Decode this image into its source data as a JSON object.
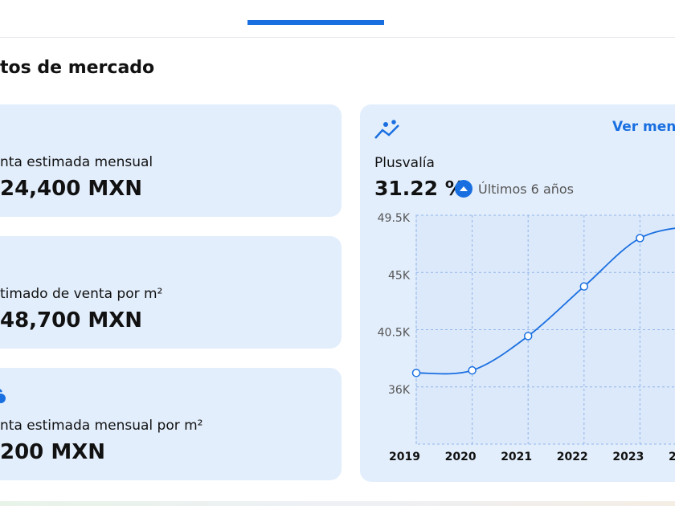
{
  "header": {
    "title": "tos de mercado"
  },
  "cards": [
    {
      "label": "nta estimada mensual",
      "value": "24,400 MXN"
    },
    {
      "label": "timado de venta por m²",
      "value": "48,700 MXN"
    },
    {
      "label": "nta estimada mensual por m²",
      "value": "200 MXN"
    }
  ],
  "chart_card": {
    "link": "Ver men",
    "title": "Plusvalía",
    "change": "31.22 %",
    "period": "Últimos 6 años"
  },
  "chart_data": {
    "type": "line",
    "categories": [
      "2019",
      "2020",
      "2021",
      "2022",
      "2023",
      "20"
    ],
    "values": [
      37100,
      37300,
      40000,
      43900,
      47700,
      48700
    ],
    "color": "#1a6fe0",
    "ylim": [
      31500,
      49500
    ],
    "yticks": [
      {
        "value": 36000,
        "label": "36K"
      },
      {
        "value": 40500,
        "label": "40.5K"
      },
      {
        "value": 45000,
        "label": "45K"
      },
      {
        "value": 49500,
        "label": "49.5K"
      }
    ],
    "grid": true
  }
}
